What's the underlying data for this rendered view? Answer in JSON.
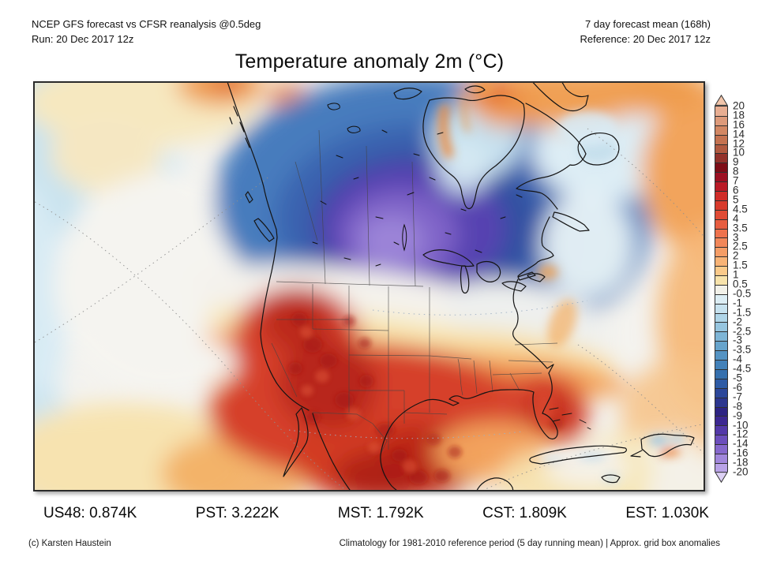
{
  "header": {
    "left_line1": "NCEP GFS forecast vs CFSR reanalysis @0.5deg",
    "left_line2": "Run: 20 Dec 2017 12z",
    "right_line1": "7 day forecast mean (168h)",
    "right_line2": "Reference: 20 Dec 2017 12z"
  },
  "title": "Temperature anomaly 2m (°C)",
  "stats": [
    "US48: 0.874K",
    "PST: 3.222K",
    "MST: 1.792K",
    "CST: 1.809K",
    "EST: 1.030K"
  ],
  "footer": {
    "left": "(c) Karsten Haustein",
    "right": "Climatology for 1981-2010 reference period (5 day running mean) | Approx. grid box anomalies"
  },
  "colorbar": {
    "tick_labels": [
      "20",
      "18",
      "16",
      "14",
      "12",
      "10",
      "9",
      "8",
      "7",
      "6",
      "5",
      "4.5",
      "4",
      "3.5",
      "3",
      "2.5",
      "2",
      "1.5",
      "1",
      "0.5",
      "-0.5",
      "-1",
      "-1.5",
      "-2",
      "-2.5",
      "-3",
      "-3.5",
      "-4",
      "-4.5",
      "-5",
      "-6",
      "-7",
      "-8",
      "-9",
      "-10",
      "-12",
      "-14",
      "-16",
      "-18",
      "-20"
    ],
    "segment_colors": [
      "#e8ae92",
      "#dd9a7a",
      "#d28763",
      "#c47250",
      "#b15a40",
      "#93322b",
      "#7e0d17",
      "#9c1022",
      "#ba1a26",
      "#d02c28",
      "#d83a2b",
      "#e04b35",
      "#e75d40",
      "#ee724d",
      "#f28759",
      "#f59d66",
      "#f8b376",
      "#fbca8a",
      "#f8e3ab",
      "#f2f1e9",
      "#dcedf4",
      "#c7e2ef",
      "#afd5e8",
      "#96c5df",
      "#7eb5d6",
      "#67a4cc",
      "#5493c3",
      "#4381b9",
      "#3670ae",
      "#2e5ba5",
      "#2c479a",
      "#2c368f",
      "#2d2383",
      "#3c2791",
      "#5338a8",
      "#6c4ebc",
      "#8668cc",
      "#a187db",
      "#b9a3e7"
    ],
    "arrow_top_color": "#f1c5ab",
    "arrow_bottom_color": "#dcd0f4"
  },
  "chart_data": {
    "type": "heatmap",
    "title": "Temperature anomaly 2m (°C)",
    "variable": "2 m temperature anomaly",
    "units": "°C",
    "model": "NCEP GFS forecast vs CFSR reanalysis @0.5deg",
    "run": "20 Dec 2017 12z",
    "forecast_period": "7 day forecast mean (168h)",
    "reference": "20 Dec 2017 12z",
    "climatology": "1981-2010 reference period (5 day running mean)",
    "colorbar_ticks": [
      20,
      18,
      16,
      14,
      12,
      10,
      9,
      8,
      7,
      6,
      5,
      4.5,
      4,
      3.5,
      3,
      2.5,
      2,
      1.5,
      1,
      0.5,
      -0.5,
      -1,
      -1.5,
      -2,
      -2.5,
      -3,
      -3.5,
      -4,
      -4.5,
      -5,
      -6,
      -7,
      -8,
      -9,
      -10,
      -12,
      -14,
      -16,
      -18,
      -20
    ],
    "colorbar_colors_warm_to_cool": [
      "#e8ae92",
      "#dd9a7a",
      "#d28763",
      "#c47250",
      "#b15a40",
      "#93322b",
      "#7e0d17",
      "#9c1022",
      "#ba1a26",
      "#d02c28",
      "#d83a2b",
      "#e04b35",
      "#e75d40",
      "#ee724d",
      "#f28759",
      "#f59d66",
      "#f8b376",
      "#fbca8a",
      "#f8e3ab",
      "#f2f1e9",
      "#dcedf4",
      "#c7e2ef",
      "#afd5e8",
      "#96c5df",
      "#7eb5d6",
      "#67a4cc",
      "#5493c3",
      "#4381b9",
      "#3670ae",
      "#2e5ba5",
      "#2c479a",
      "#2c368f",
      "#2d2383",
      "#3c2791",
      "#5338a8",
      "#6c4ebc",
      "#8668cc",
      "#a187db",
      "#b9a3e7"
    ],
    "regional_mean_anomalies": [
      {
        "region": "US48",
        "value_K": 0.874
      },
      {
        "region": "PST",
        "value_K": 3.222
      },
      {
        "region": "MST",
        "value_K": 1.792
      },
      {
        "region": "CST",
        "value_K": 1.809
      },
      {
        "region": "EST",
        "value_K": 1.03
      }
    ]
  }
}
